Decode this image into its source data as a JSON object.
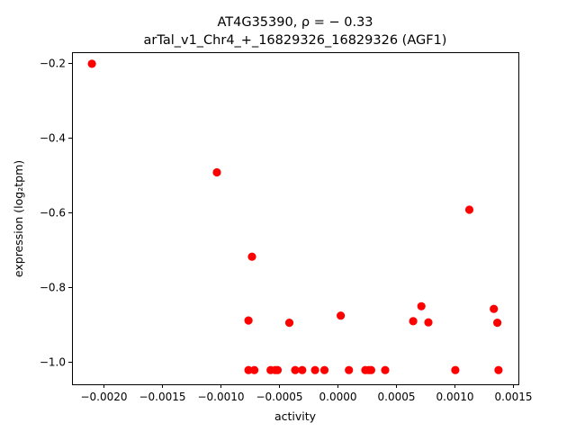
{
  "chart_data": {
    "type": "scatter",
    "title_line1": "AT4G35390, ρ = − 0.33",
    "title_line2": "arTal_v1_Chr4_+_16829326_16829326 (AGF1)",
    "xlabel": "activity",
    "ylabel": "expression (log₂tpm)",
    "xlim": [
      -0.00227,
      0.00155
    ],
    "ylim": [
      -1.06,
      -0.17
    ],
    "x_ticks": [
      -0.002,
      -0.0015,
      -0.001,
      -0.0005,
      0.0,
      0.0005,
      0.001,
      0.0015
    ],
    "x_tick_labels": [
      "−0.0020",
      "−0.0015",
      "−0.0010",
      "−0.0005",
      "0.0000",
      "0.0005",
      "0.0010",
      "0.0015"
    ],
    "y_ticks": [
      -0.2,
      -0.4,
      -0.6,
      -0.8,
      -1.0
    ],
    "y_tick_labels": [
      "−0.2",
      "−0.4",
      "−0.6",
      "−0.8",
      "−1.0"
    ],
    "marker_color": "#ff0000",
    "grid": false,
    "points": [
      {
        "x": -0.0021,
        "y": -0.201
      },
      {
        "x": -0.00103,
        "y": -0.492
      },
      {
        "x": -0.00073,
        "y": -0.718
      },
      {
        "x": -0.00076,
        "y": -0.889
      },
      {
        "x": -0.00041,
        "y": -0.895
      },
      {
        "x": 3e-05,
        "y": -0.876
      },
      {
        "x": 0.00065,
        "y": -0.891
      },
      {
        "x": 0.00072,
        "y": -0.851
      },
      {
        "x": 0.00078,
        "y": -0.894
      },
      {
        "x": 0.00113,
        "y": -0.592
      },
      {
        "x": 0.00134,
        "y": -0.858
      },
      {
        "x": 0.00137,
        "y": -0.895
      },
      {
        "x": -0.00076,
        "y": -1.022
      },
      {
        "x": -0.00071,
        "y": -1.022
      },
      {
        "x": -0.00057,
        "y": -1.022
      },
      {
        "x": -0.00053,
        "y": -1.022
      },
      {
        "x": -0.00051,
        "y": -1.022
      },
      {
        "x": -0.00036,
        "y": -1.022
      },
      {
        "x": -0.0003,
        "y": -1.022
      },
      {
        "x": -0.00019,
        "y": -1.022
      },
      {
        "x": -0.00011,
        "y": -1.022
      },
      {
        "x": 0.0001,
        "y": -1.022
      },
      {
        "x": 0.00024,
        "y": -1.022
      },
      {
        "x": 0.00027,
        "y": -1.022
      },
      {
        "x": 0.00029,
        "y": -1.022
      },
      {
        "x": 0.00041,
        "y": -1.022
      },
      {
        "x": 0.00101,
        "y": -1.022
      },
      {
        "x": 0.00138,
        "y": -1.022
      }
    ]
  }
}
